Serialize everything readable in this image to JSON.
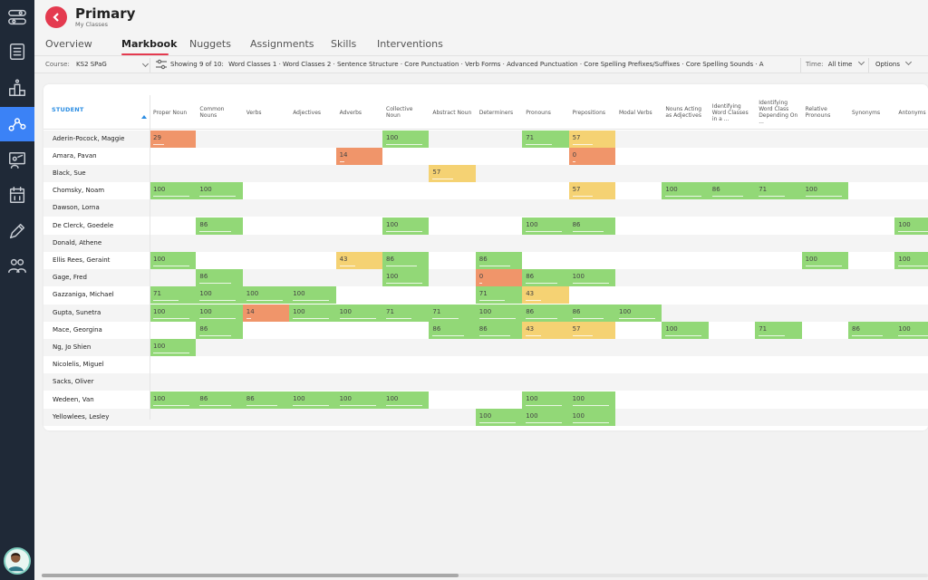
{
  "header": {
    "title": "Primary",
    "subtitle": "My Classes"
  },
  "tabs": [
    "Overview",
    "Markbook",
    "Nuggets",
    "Assignments",
    "Skills",
    "Interventions"
  ],
  "active_tab": "Markbook",
  "filterbar": {
    "course_label": "Course:",
    "course_value": "KS2 SPaG",
    "showing": "Showing 9 of 10:",
    "topics": "Word Classes 1 · Word Classes 2 · Sentence Structure · Core Punctuation · Verb Forms · Advanced Punctuation · Core Spelling Prefixes/Suffixes · Core Spelling Sounds · A",
    "time_label": "Time:",
    "time_value": "All time",
    "options_label": "Options"
  },
  "grid": {
    "student_header": "STUDENT",
    "columns": [
      "Proper Noun",
      "Common Nouns",
      "Verbs",
      "Adjectives",
      "Adverbs",
      "Collective Noun",
      "Abstract Noun",
      "Determiners",
      "Pronouns",
      "Prepositions",
      "Modal Verbs",
      "Nouns Acting as Adjectives",
      "Identifying Word Classes in a ...",
      "Identifying Word Class Depending On ...",
      "Relative Pronouns",
      "Synonyms",
      "Antonyms"
    ],
    "rows": [
      {
        "name": "Aderin-Pocock, Maggie",
        "scores": [
          "29",
          "",
          "",
          "",
          "",
          "100",
          "",
          "",
          "71",
          "57",
          "",
          "",
          "",
          "",
          "",
          "",
          ""
        ]
      },
      {
        "name": "Amara, Pavan",
        "scores": [
          "",
          "",
          "",
          "",
          "14",
          "",
          "",
          "",
          "",
          "0",
          "",
          "",
          "",
          "",
          "",
          "",
          ""
        ]
      },
      {
        "name": "Black, Sue",
        "scores": [
          "",
          "",
          "",
          "",
          "",
          "",
          "57",
          "",
          "",
          "",
          "",
          "",
          "",
          "",
          "",
          "",
          ""
        ]
      },
      {
        "name": "Chomsky, Noam",
        "scores": [
          "100",
          "100",
          "",
          "",
          "",
          "",
          "",
          "",
          "",
          "57",
          "",
          "100",
          "86",
          "71",
          "100",
          "",
          ""
        ]
      },
      {
        "name": "Dawson, Lorna",
        "scores": [
          "",
          "",
          "",
          "",
          "",
          "",
          "",
          "",
          "",
          "",
          "",
          "",
          "",
          "",
          "",
          "",
          ""
        ]
      },
      {
        "name": "De Clerck, Goedele",
        "scores": [
          "",
          "86",
          "",
          "",
          "",
          "100",
          "",
          "",
          "100",
          "86",
          "",
          "",
          "",
          "",
          "",
          "",
          "100"
        ]
      },
      {
        "name": "Donald, Athene",
        "scores": [
          "",
          "",
          "",
          "",
          "",
          "",
          "",
          "",
          "",
          "",
          "",
          "",
          "",
          "",
          "",
          "",
          ""
        ]
      },
      {
        "name": "Ellis Rees, Geraint",
        "scores": [
          "100",
          "",
          "",
          "",
          "43",
          "86",
          "",
          "86",
          "",
          "",
          "",
          "",
          "",
          "",
          "100",
          "",
          "100"
        ]
      },
      {
        "name": "Gage, Fred",
        "scores": [
          "",
          "86",
          "",
          "",
          "",
          "100",
          "",
          "0",
          "86",
          "100",
          "",
          "",
          "",
          "",
          "",
          "",
          ""
        ]
      },
      {
        "name": "Gazzaniga, Michael",
        "scores": [
          "71",
          "100",
          "100",
          "100",
          "",
          "",
          "",
          "71",
          "43",
          "",
          "",
          "",
          "",
          "",
          "",
          "",
          ""
        ]
      },
      {
        "name": "Gupta, Sunetra",
        "scores": [
          "100",
          "100",
          "14",
          "100",
          "100",
          "71",
          "71",
          "100",
          "86",
          "86",
          "100",
          "",
          "",
          "",
          "",
          "",
          ""
        ]
      },
      {
        "name": "Mace, Georgina",
        "scores": [
          "",
          "86",
          "",
          "",
          "",
          "",
          "86",
          "86",
          "43",
          "57",
          "",
          "100",
          "",
          "71",
          "",
          "86",
          "100"
        ]
      },
      {
        "name": "Ng, Jo Shien",
        "scores": [
          "100",
          "",
          "",
          "",
          "",
          "",
          "",
          "",
          "",
          "",
          "",
          "",
          "",
          "",
          "",
          "",
          ""
        ]
      },
      {
        "name": "Nicolelis, Miguel",
        "scores": [
          "",
          "",
          "",
          "",
          "",
          "",
          "",
          "",
          "",
          "",
          "",
          "",
          "",
          "",
          "",
          "",
          ""
        ]
      },
      {
        "name": "Sacks, Oliver",
        "scores": [
          "",
          "",
          "",
          "",
          "",
          "",
          "",
          "",
          "",
          "",
          "",
          "",
          "",
          "",
          "",
          "",
          ""
        ]
      },
      {
        "name": "Wedeen, Van",
        "scores": [
          "100",
          "86",
          "86",
          "100",
          "100",
          "100",
          "",
          "",
          "100",
          "100",
          "",
          "",
          "",
          "",
          "",
          "",
          ""
        ]
      },
      {
        "name": "Yellowlees, Lesley",
        "scores": [
          "",
          "",
          "",
          "",
          "",
          "",
          "",
          "100",
          "100",
          "100",
          "",
          "",
          "",
          "",
          "",
          "",
          ""
        ]
      }
    ]
  },
  "colors": {
    "green": "#92d877",
    "yellow": "#f5d273",
    "orange": "#f0956a",
    "accent": "#e43a4f",
    "sidebar": "#1f2937",
    "active_nav": "#3b82f6"
  },
  "sidebar_icons": [
    "sliders-icon",
    "list-icon",
    "podium-icon",
    "network-icon",
    "presentation-icon",
    "calendar-icon",
    "pencil-icon",
    "users-icon"
  ]
}
